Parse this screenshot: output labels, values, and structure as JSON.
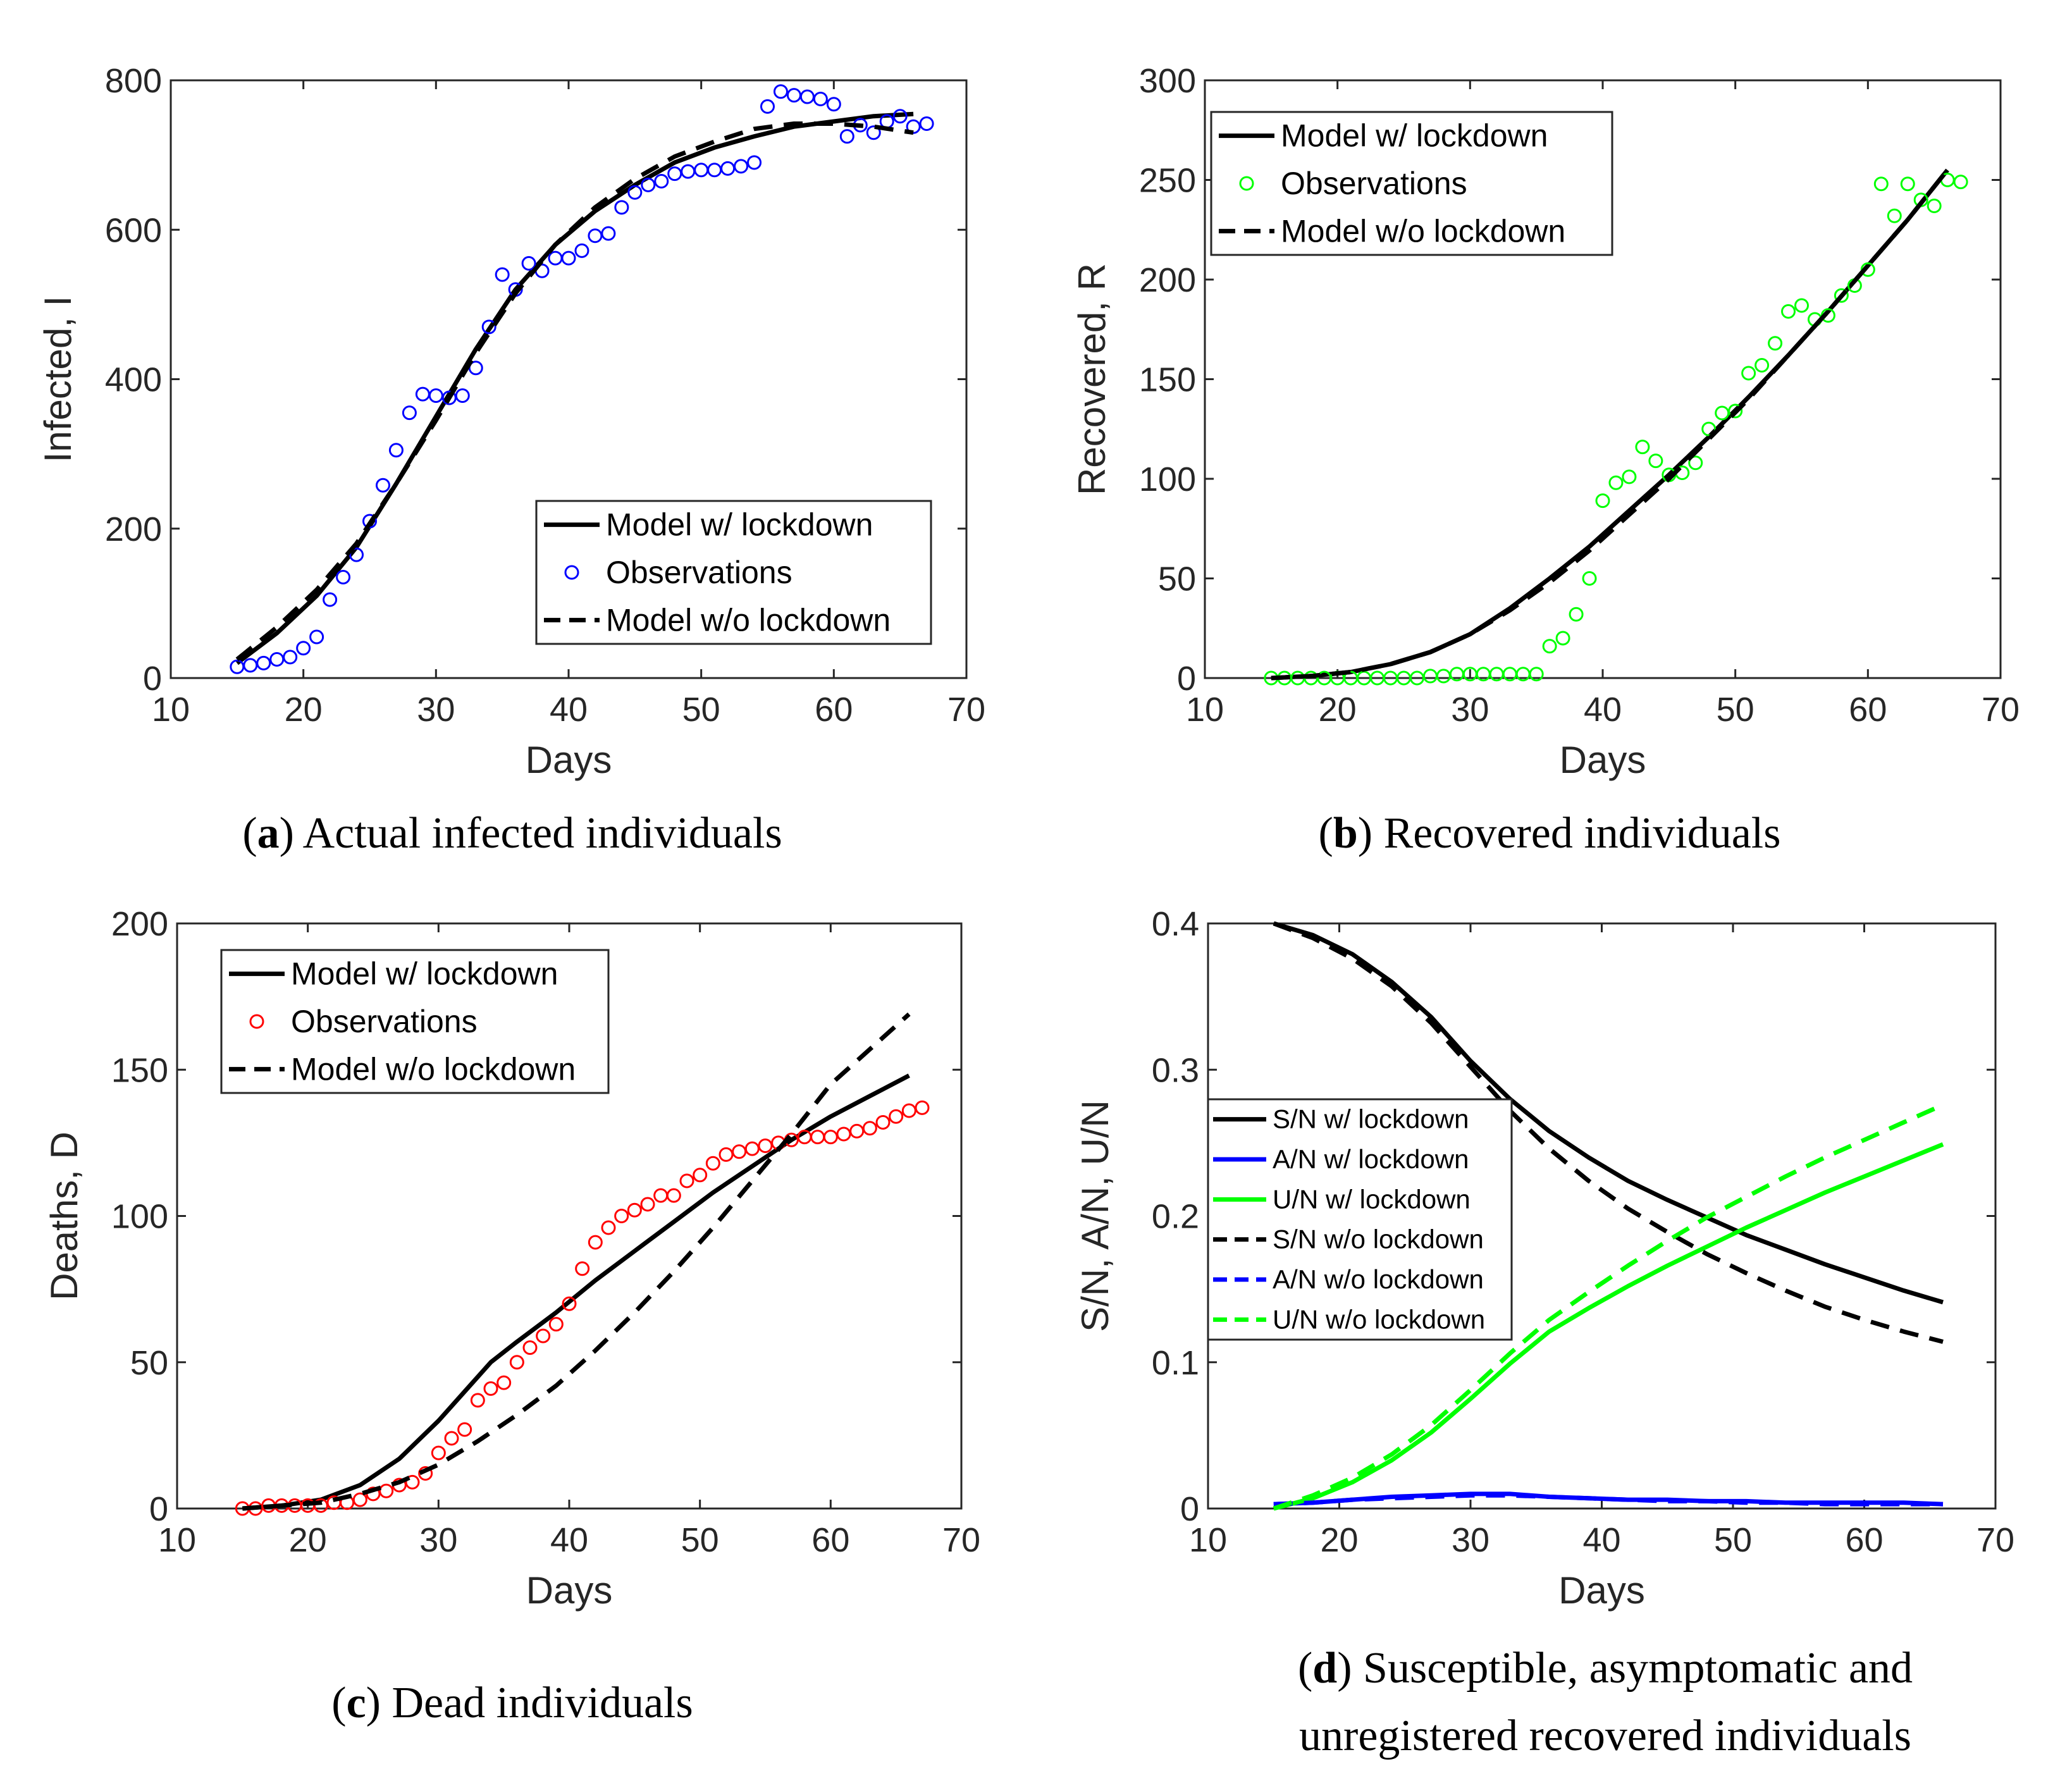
{
  "chart_data": [
    {
      "id": "a",
      "type": "line",
      "caption": {
        "letter": "a",
        "text": "Actual infected individuals"
      },
      "xlabel": "Days",
      "ylabel": "Infected, I",
      "xlim": [
        10,
        70
      ],
      "ylim": [
        0,
        800
      ],
      "xticks": [
        10,
        20,
        30,
        40,
        50,
        60,
        70
      ],
      "yticks": [
        0,
        200,
        400,
        600,
        800
      ],
      "legend_position": "bottom-right",
      "series": [
        {
          "name": "Model w/ lockdown",
          "style": "solid",
          "color": "#000000",
          "x": [
            15,
            18,
            21,
            24,
            27,
            30,
            33,
            36,
            39,
            42,
            45,
            48,
            51,
            54,
            57,
            60,
            63,
            66
          ],
          "y": [
            20,
            60,
            110,
            175,
            260,
            350,
            440,
            520,
            580,
            625,
            660,
            690,
            710,
            725,
            738,
            745,
            752,
            755
          ]
        },
        {
          "name": "Observations",
          "style": "markers",
          "color": "#0000ff",
          "x": [
            15,
            16,
            17,
            18,
            19,
            20,
            21,
            22,
            23,
            24,
            25,
            26,
            27,
            28,
            29,
            30,
            31,
            32,
            33,
            34,
            35,
            36,
            37,
            38,
            39,
            40,
            41,
            42,
            43,
            44,
            45,
            46,
            47,
            48,
            49,
            50,
            51,
            52,
            53,
            54,
            55,
            56,
            57,
            58,
            59,
            60,
            61,
            62,
            63,
            64,
            65,
            66,
            67
          ],
          "y": [
            15,
            17,
            20,
            25,
            28,
            40,
            55,
            105,
            135,
            165,
            210,
            258,
            305,
            355,
            380,
            378,
            375,
            378,
            415,
            470,
            540,
            520,
            555,
            545,
            562,
            562,
            572,
            592,
            595,
            630,
            650,
            660,
            665,
            675,
            678,
            680,
            680,
            682,
            685,
            690,
            765,
            785,
            780,
            778,
            775,
            768,
            725,
            740,
            730,
            745,
            752,
            738,
            742
          ]
        },
        {
          "name": "Model w/o lockdown",
          "style": "dashed",
          "color": "#000000",
          "x": [
            15,
            18,
            21,
            24,
            27,
            30,
            33,
            36,
            39,
            42,
            45,
            48,
            51,
            54,
            57,
            60,
            63,
            66
          ],
          "y": [
            25,
            68,
            118,
            180,
            260,
            345,
            435,
            515,
            580,
            630,
            668,
            698,
            718,
            735,
            742,
            742,
            738,
            730
          ]
        }
      ]
    },
    {
      "id": "b",
      "type": "line",
      "caption": {
        "letter": "b",
        "text": "Recovered individuals"
      },
      "xlabel": "Days",
      "ylabel": "Recovered, R",
      "xlim": [
        10,
        70
      ],
      "ylim": [
        0,
        300
      ],
      "xticks": [
        10,
        20,
        30,
        40,
        50,
        60,
        70
      ],
      "yticks": [
        0,
        50,
        100,
        150,
        200,
        250,
        300
      ],
      "legend_position": "top-left",
      "series": [
        {
          "name": "Model w/ lockdown",
          "style": "solid",
          "color": "#000000",
          "x": [
            15,
            18,
            21,
            24,
            27,
            30,
            33,
            36,
            39,
            42,
            45,
            48,
            51,
            54,
            57,
            60,
            63,
            66
          ],
          "y": [
            0,
            1,
            3,
            7,
            13,
            22,
            35,
            50,
            66,
            84,
            102,
            121,
            141,
            162,
            184,
            207,
            230,
            255
          ]
        },
        {
          "name": "Observations",
          "style": "markers",
          "color": "#00ff00",
          "x": [
            15,
            16,
            17,
            18,
            19,
            20,
            21,
            22,
            23,
            24,
            25,
            26,
            27,
            28,
            29,
            30,
            31,
            32,
            33,
            34,
            35,
            36,
            37,
            38,
            39,
            40,
            41,
            42,
            43,
            44,
            45,
            46,
            47,
            48,
            49,
            50,
            51,
            52,
            53,
            54,
            55,
            56,
            57,
            58,
            59,
            60,
            61,
            62,
            63,
            64,
            65,
            66,
            67
          ],
          "y": [
            0,
            0,
            0,
            0,
            0,
            0,
            0,
            0,
            0,
            0,
            0,
            0,
            1,
            1,
            2,
            2,
            2,
            2,
            2,
            2,
            2,
            16,
            20,
            32,
            50,
            89,
            98,
            101,
            116,
            109,
            102,
            103,
            108,
            125,
            133,
            134,
            153,
            157,
            168,
            184,
            187,
            180,
            182,
            192,
            197,
            205,
            248,
            232,
            248,
            240,
            237,
            250,
            249
          ]
        },
        {
          "name": "Model w/o lockdown",
          "style": "dashed",
          "color": "#000000",
          "x": [
            15,
            18,
            21,
            24,
            27,
            30,
            33,
            36,
            39,
            42,
            45,
            48,
            51,
            54,
            57,
            60,
            63,
            66
          ],
          "y": [
            0,
            1,
            3,
            7,
            13,
            22,
            34,
            48,
            64,
            82,
            100,
            120,
            140,
            162,
            184,
            207,
            230,
            255
          ]
        }
      ]
    },
    {
      "id": "c",
      "type": "line",
      "caption": {
        "letter": "c",
        "text": "Dead individuals"
      },
      "xlabel": "Days",
      "ylabel": "Deaths, D",
      "xlim": [
        10,
        70
      ],
      "ylim": [
        0,
        200
      ],
      "xticks": [
        10,
        20,
        30,
        40,
        50,
        60,
        70
      ],
      "yticks": [
        0,
        50,
        100,
        150,
        200
      ],
      "legend_position": "top-left",
      "series": [
        {
          "name": "Model w/ lockdown",
          "style": "solid",
          "color": "#000000",
          "x": [
            15,
            18,
            21,
            24,
            27,
            30,
            32,
            34,
            36,
            39,
            42,
            45,
            48,
            51,
            54,
            57,
            60,
            63,
            66
          ],
          "y": [
            0,
            1,
            3,
            8,
            17,
            30,
            40,
            50,
            57,
            67,
            78,
            88,
            98,
            108,
            117,
            126,
            134,
            141,
            148
          ]
        },
        {
          "name": "Observations",
          "style": "markers",
          "color": "#ff0000",
          "x": [
            15,
            16,
            17,
            18,
            19,
            20,
            21,
            22,
            23,
            24,
            25,
            26,
            27,
            28,
            29,
            30,
            31,
            32,
            33,
            34,
            35,
            36,
            37,
            38,
            39,
            40,
            41,
            42,
            43,
            44,
            45,
            46,
            47,
            48,
            49,
            50,
            51,
            52,
            53,
            54,
            55,
            56,
            57,
            58,
            59,
            60,
            61,
            62,
            63,
            64,
            65,
            66,
            67
          ],
          "y": [
            0,
            0,
            1,
            1,
            1,
            1,
            1,
            2,
            2,
            3,
            5,
            6,
            8,
            9,
            12,
            19,
            24,
            27,
            37,
            41,
            43,
            50,
            55,
            59,
            63,
            70,
            82,
            91,
            96,
            100,
            102,
            104,
            107,
            107,
            112,
            114,
            118,
            121,
            122,
            123,
            124,
            125,
            126,
            127,
            127,
            127,
            128,
            129,
            130,
            132,
            134,
            136,
            137
          ]
        },
        {
          "name": "Model w/o lockdown",
          "style": "dashed",
          "color": "#000000",
          "x": [
            15,
            18,
            21,
            24,
            27,
            30,
            33,
            36,
            39,
            42,
            45,
            48,
            51,
            54,
            57,
            60,
            63,
            66
          ],
          "y": [
            0,
            1,
            2,
            5,
            9,
            15,
            23,
            32,
            42,
            54,
            67,
            81,
            96,
            112,
            128,
            145,
            157,
            169
          ]
        }
      ]
    },
    {
      "id": "d",
      "type": "line",
      "caption": {
        "letter": "d",
        "text": "Susceptible, asymptomatic and",
        "text2": "unregistered recovered individuals"
      },
      "xlabel": "Days",
      "ylabel": "S/N, A/N, U/N",
      "xlim": [
        10,
        70
      ],
      "ylim": [
        0,
        0.4
      ],
      "xticks": [
        10,
        20,
        30,
        40,
        50,
        60,
        70
      ],
      "yticks": [
        0,
        0.1,
        0.2,
        0.3,
        0.4
      ],
      "ytick_labels": [
        "0",
        "0.1",
        "0.2",
        "0.3",
        "0.4"
      ],
      "legend_position": "middle-left",
      "series": [
        {
          "name": "S/N w/ lockdown",
          "style": "solid",
          "color": "#000000",
          "x": [
            15,
            18,
            21,
            24,
            27,
            30,
            33,
            36,
            39,
            42,
            45,
            48,
            51,
            54,
            57,
            60,
            63,
            66
          ],
          "y": [
            0.4,
            0.392,
            0.379,
            0.36,
            0.336,
            0.306,
            0.28,
            0.258,
            0.24,
            0.224,
            0.211,
            0.199,
            0.187,
            0.177,
            0.167,
            0.158,
            0.149,
            0.141
          ]
        },
        {
          "name": "A/N w/ lockdown",
          "style": "solid",
          "color": "#0000ff",
          "x": [
            15,
            18,
            21,
            24,
            27,
            30,
            33,
            36,
            39,
            42,
            45,
            48,
            51,
            54,
            57,
            60,
            63,
            66
          ],
          "y": [
            0.003,
            0.004,
            0.006,
            0.008,
            0.009,
            0.01,
            0.01,
            0.008,
            0.007,
            0.006,
            0.006,
            0.005,
            0.005,
            0.004,
            0.004,
            0.004,
            0.004,
            0.003
          ]
        },
        {
          "name": "U/N w/ lockdown",
          "style": "solid",
          "color": "#00ff00",
          "x": [
            15,
            18,
            21,
            24,
            27,
            30,
            33,
            36,
            39,
            42,
            45,
            48,
            51,
            54,
            57,
            60,
            63,
            66
          ],
          "y": [
            0,
            0.007,
            0.018,
            0.033,
            0.052,
            0.075,
            0.099,
            0.121,
            0.137,
            0.152,
            0.166,
            0.179,
            0.192,
            0.204,
            0.216,
            0.227,
            0.238,
            0.249
          ]
        },
        {
          "name": "S/N w/o lockdown",
          "style": "dashed",
          "color": "#000000",
          "x": [
            15,
            18,
            21,
            24,
            27,
            30,
            33,
            36,
            39,
            42,
            45,
            48,
            51,
            54,
            57,
            60,
            63,
            66
          ],
          "y": [
            0.4,
            0.39,
            0.376,
            0.357,
            0.332,
            0.302,
            0.272,
            0.246,
            0.224,
            0.205,
            0.189,
            0.174,
            0.161,
            0.149,
            0.138,
            0.129,
            0.121,
            0.114
          ]
        },
        {
          "name": "A/N w/o lockdown",
          "style": "dashed",
          "color": "#0000ff",
          "x": [
            15,
            18,
            21,
            24,
            27,
            30,
            33,
            36,
            39,
            42,
            45,
            48,
            51,
            54,
            57,
            60,
            63,
            66
          ],
          "y": [
            0.003,
            0.004,
            0.006,
            0.007,
            0.008,
            0.009,
            0.009,
            0.008,
            0.007,
            0.006,
            0.005,
            0.005,
            0.004,
            0.004,
            0.003,
            0.003,
            0.003,
            0.003
          ]
        },
        {
          "name": "U/N w/o lockdown",
          "style": "dashed",
          "color": "#00ff00",
          "x": [
            15,
            18,
            21,
            24,
            27,
            30,
            33,
            36,
            39,
            42,
            45,
            48,
            51,
            54,
            57,
            60,
            63,
            66
          ],
          "y": [
            0,
            0.009,
            0.021,
            0.037,
            0.057,
            0.081,
            0.106,
            0.129,
            0.148,
            0.166,
            0.183,
            0.199,
            0.213,
            0.227,
            0.24,
            0.252,
            0.264,
            0.276
          ]
        }
      ]
    }
  ]
}
